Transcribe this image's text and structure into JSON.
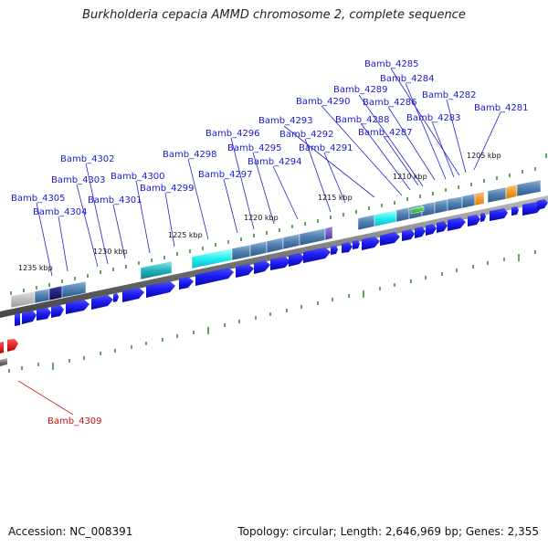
{
  "title": "Burkholderia cepacia AMMD chromosome 2, complete sequence",
  "footer": {
    "accession": "Accession: NC_008391",
    "topology": "Topology: circular; Length: 2,646,969 bp; Genes: 2,355"
  },
  "colors": {
    "gene_forward": "#1a1aff",
    "gene_highlight": "#ee1111",
    "label_text": "#1a1acc",
    "label_red": "#cc1111",
    "tick": "#2a8a2a",
    "backbone": "#777777"
  },
  "scale_labels": [
    "1205 kbp",
    "1210 kbp",
    "1215 kbp",
    "1220 kbp",
    "1225 kbp",
    "1230 kbp",
    "1235 kbp"
  ],
  "gene_labels": [
    "Bamb_4285",
    "Bamb_4284",
    "Bamb_4289",
    "Bamb_4282",
    "Bamb_4290",
    "Bamb_4286",
    "Bamb_4281",
    "Bamb_4293",
    "Bamb_4288",
    "Bamb_4283",
    "Bamb_4296",
    "Bamb_4292",
    "Bamb_4287",
    "Bamb_4295",
    "Bamb_4291",
    "Bamb_4298",
    "Bamb_4302",
    "Bamb_4294",
    "Bamb_4297",
    "Bamb_4300",
    "Bamb_4303",
    "Bamb_4299",
    "Bamb_4305",
    "Bamb_4301",
    "Bamb_4304"
  ],
  "highlight_label": "Bamb_4309"
}
